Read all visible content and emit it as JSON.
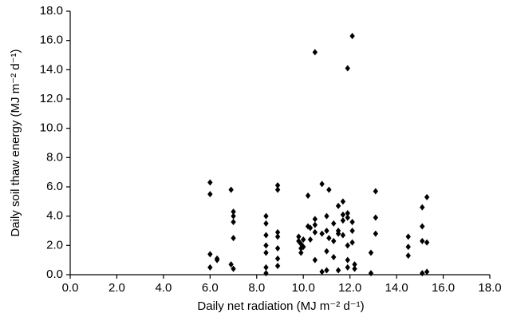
{
  "chart_data": {
    "type": "scatter",
    "xlabel": "Daily net radiation (MJ m⁻² d⁻¹)",
    "ylabel": "Daily soil thaw energy (MJ m⁻² d⁻¹)",
    "xlim": [
      0,
      18
    ],
    "ylim": [
      0,
      18
    ],
    "xticks": [
      {
        "value": 0,
        "label": "0.0"
      },
      {
        "value": 2,
        "label": "2.0"
      },
      {
        "value": 4,
        "label": "4.0"
      },
      {
        "value": 6,
        "label": "6.0"
      },
      {
        "value": 8,
        "label": "8.0"
      },
      {
        "value": 10,
        "label": "10.0"
      },
      {
        "value": 12,
        "label": "12.0"
      },
      {
        "value": 14,
        "label": "14.0"
      },
      {
        "value": 16,
        "label": "16.0"
      },
      {
        "value": 18,
        "label": "18.0"
      }
    ],
    "yticks": [
      {
        "value": 0,
        "label": "0.0"
      },
      {
        "value": 2,
        "label": "2.0"
      },
      {
        "value": 4,
        "label": "4.0"
      },
      {
        "value": 6,
        "label": "6.0"
      },
      {
        "value": 8,
        "label": "8.0"
      },
      {
        "value": 10,
        "label": "10.0"
      },
      {
        "value": 12,
        "label": "12.0"
      },
      {
        "value": 14,
        "label": "14.0"
      },
      {
        "value": 16,
        "label": "16.0"
      },
      {
        "value": 18,
        "label": "18.0"
      }
    ],
    "color": "#000000",
    "x": [
      6.0,
      6.0,
      6.0,
      6.0,
      6.3,
      6.3,
      6.9,
      6.9,
      7.0,
      7.0,
      7.0,
      7.0,
      7.0,
      8.4,
      8.4,
      8.4,
      8.4,
      8.4,
      8.4,
      8.4,
      8.9,
      8.9,
      8.9,
      8.9,
      8.9,
      8.9,
      8.9,
      9.8,
      9.8,
      9.9,
      9.9,
      9.9,
      10.0,
      10.0,
      10.2,
      10.2,
      10.3,
      10.3,
      10.5,
      10.5,
      10.5,
      10.5,
      10.5,
      10.8,
      10.8,
      10.8,
      11.0,
      11.0,
      11.0,
      11.0,
      11.1,
      11.1,
      11.3,
      11.3,
      11.3,
      11.5,
      11.5,
      11.5,
      11.5,
      11.7,
      11.7,
      11.7,
      11.7,
      11.9,
      11.9,
      11.9,
      11.9,
      11.9,
      11.9,
      12.1,
      12.1,
      12.1,
      12.1,
      12.2,
      12.2,
      12.9,
      12.9,
      13.1,
      13.1,
      13.1,
      14.5,
      14.5,
      14.5,
      15.1,
      15.1,
      15.1,
      15.1,
      15.3,
      15.3,
      15.3
    ],
    "y": [
      6.3,
      5.5,
      1.4,
      0.5,
      1.1,
      1.0,
      5.8,
      0.7,
      4.3,
      4.0,
      3.6,
      2.5,
      0.4,
      4.0,
      3.5,
      2.7,
      2.0,
      1.5,
      0.5,
      0.1,
      6.1,
      5.8,
      2.9,
      2.6,
      1.8,
      1.1,
      0.6,
      2.6,
      2.3,
      2.1,
      1.8,
      1.5,
      2.4,
      1.9,
      5.4,
      3.3,
      3.2,
      2.4,
      15.2,
      3.8,
      3.4,
      2.9,
      1.0,
      6.2,
      2.8,
      0.2,
      4.0,
      3.0,
      1.6,
      0.3,
      5.8,
      2.5,
      3.5,
      2.3,
      1.2,
      4.7,
      3.0,
      2.8,
      0.3,
      5.0,
      4.1,
      3.7,
      2.7,
      14.1,
      4.2,
      3.9,
      2.0,
      1.0,
      0.5,
      16.3,
      3.6,
      3.0,
      2.2,
      0.7,
      0.4,
      1.5,
      0.1,
      5.7,
      3.9,
      2.8,
      2.6,
      1.9,
      1.3,
      4.6,
      3.3,
      2.3,
      0.1,
      5.3,
      2.2,
      0.2
    ]
  }
}
